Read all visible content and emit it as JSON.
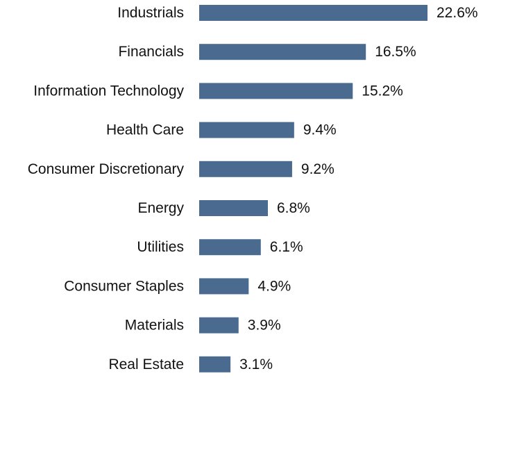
{
  "chart_data": {
    "type": "bar",
    "orientation": "horizontal",
    "title": "",
    "xlabel": "",
    "ylabel": "",
    "categories": [
      "Industrials",
      "Financials",
      "Information Technology",
      "Health Care",
      "Consumer Discretionary",
      "Energy",
      "Utilities",
      "Consumer Staples",
      "Materials",
      "Real Estate"
    ],
    "values": [
      22.6,
      16.5,
      15.2,
      9.4,
      9.2,
      6.8,
      6.1,
      4.9,
      3.9,
      3.1
    ],
    "value_labels": [
      "22.6%",
      "16.5%",
      "15.2%",
      "9.4%",
      "9.2%",
      "6.8%",
      "6.1%",
      "4.9%",
      "3.9%",
      "3.1%"
    ],
    "xlim": [
      0,
      22.6
    ],
    "grid": false,
    "legend": "none",
    "bar_color": "#4a6b8f"
  }
}
